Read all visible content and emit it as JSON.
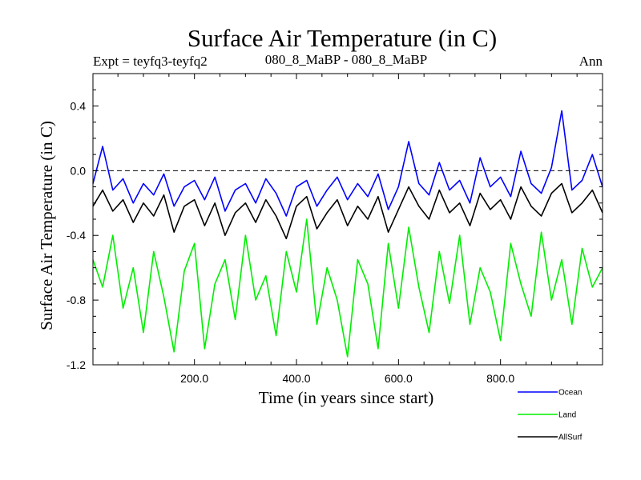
{
  "chart_data": {
    "type": "line",
    "title": "Surface Air Temperature (in C)",
    "subtitle_left": "Expt = teyfq3-teyfq2",
    "subtitle_center": "080_8_MaBP - 080_8_MaBP",
    "subtitle_right": "Ann",
    "xlabel": "Time (in years since start)",
    "ylabel": "Surface Air Temperature (in C)",
    "xlim": [
      1,
      1000
    ],
    "ylim": [
      -1.2,
      0.6
    ],
    "xticks": [
      200,
      400,
      600,
      800
    ],
    "xtick_labels": [
      "200.0",
      "400.0",
      "600.0",
      "800.0"
    ],
    "yticks": [
      -1.2,
      -0.8,
      -0.4,
      0.0,
      0.4
    ],
    "ytick_labels": [
      "-1.2",
      "-0.8",
      "-0.4",
      "0.0",
      "0.4"
    ],
    "reference_line": 0.0,
    "series": [
      {
        "name": "Ocean",
        "color": "#0000ff",
        "x": [
          1,
          20,
          40,
          60,
          80,
          100,
          120,
          140,
          160,
          180,
          200,
          220,
          240,
          260,
          280,
          300,
          320,
          340,
          360,
          380,
          400,
          420,
          440,
          460,
          480,
          500,
          520,
          540,
          560,
          580,
          600,
          620,
          640,
          660,
          680,
          700,
          720,
          740,
          760,
          780,
          800,
          820,
          840,
          860,
          880,
          900,
          920,
          940,
          960,
          980,
          1000
        ],
        "values": [
          -0.08,
          0.15,
          -0.12,
          -0.05,
          -0.2,
          -0.08,
          -0.15,
          -0.02,
          -0.22,
          -0.1,
          -0.06,
          -0.18,
          -0.04,
          -0.25,
          -0.12,
          -0.08,
          -0.2,
          -0.05,
          -0.14,
          -0.28,
          -0.1,
          -0.06,
          -0.22,
          -0.12,
          -0.04,
          -0.18,
          -0.08,
          -0.16,
          -0.02,
          -0.24,
          -0.1,
          0.18,
          -0.08,
          -0.15,
          0.05,
          -0.12,
          -0.06,
          -0.2,
          0.08,
          -0.1,
          -0.04,
          -0.16,
          0.12,
          -0.08,
          -0.14,
          0.02,
          0.37,
          -0.12,
          -0.06,
          0.1,
          -0.1
        ]
      },
      {
        "name": "Land",
        "color": "#00ee00",
        "x": [
          1,
          20,
          40,
          60,
          80,
          100,
          120,
          140,
          160,
          180,
          200,
          220,
          240,
          260,
          280,
          300,
          320,
          340,
          360,
          380,
          400,
          420,
          440,
          460,
          480,
          500,
          520,
          540,
          560,
          580,
          600,
          620,
          640,
          660,
          680,
          700,
          720,
          740,
          760,
          780,
          800,
          820,
          840,
          860,
          880,
          900,
          920,
          940,
          960,
          980,
          1000
        ],
        "values": [
          -0.55,
          -0.72,
          -0.4,
          -0.85,
          -0.6,
          -1.0,
          -0.5,
          -0.78,
          -1.12,
          -0.62,
          -0.45,
          -1.1,
          -0.7,
          -0.55,
          -0.92,
          -0.4,
          -0.8,
          -0.65,
          -1.02,
          -0.5,
          -0.75,
          -0.3,
          -0.95,
          -0.6,
          -0.8,
          -1.15,
          -0.55,
          -0.7,
          -1.1,
          -0.45,
          -0.85,
          -0.35,
          -0.72,
          -1.0,
          -0.5,
          -0.82,
          -0.4,
          -0.95,
          -0.6,
          -0.75,
          -1.05,
          -0.45,
          -0.7,
          -0.9,
          -0.38,
          -0.8,
          -0.55,
          -0.95,
          -0.48,
          -0.72,
          -0.6
        ]
      },
      {
        "name": "AllSurf",
        "color": "#000000",
        "x": [
          1,
          20,
          40,
          60,
          80,
          100,
          120,
          140,
          160,
          180,
          200,
          220,
          240,
          260,
          280,
          300,
          320,
          340,
          360,
          380,
          400,
          420,
          440,
          460,
          480,
          500,
          520,
          540,
          560,
          580,
          600,
          620,
          640,
          660,
          680,
          700,
          720,
          740,
          760,
          780,
          800,
          820,
          840,
          860,
          880,
          900,
          920,
          940,
          960,
          980,
          1000
        ],
        "values": [
          -0.22,
          -0.12,
          -0.25,
          -0.18,
          -0.32,
          -0.2,
          -0.28,
          -0.15,
          -0.38,
          -0.22,
          -0.18,
          -0.34,
          -0.2,
          -0.4,
          -0.26,
          -0.2,
          -0.32,
          -0.18,
          -0.28,
          -0.42,
          -0.22,
          -0.16,
          -0.36,
          -0.26,
          -0.18,
          -0.34,
          -0.22,
          -0.3,
          -0.16,
          -0.38,
          -0.24,
          -0.1,
          -0.22,
          -0.3,
          -0.12,
          -0.26,
          -0.2,
          -0.34,
          -0.14,
          -0.24,
          -0.18,
          -0.3,
          -0.1,
          -0.22,
          -0.28,
          -0.14,
          -0.08,
          -0.26,
          -0.2,
          -0.12,
          -0.26
        ]
      }
    ],
    "legend": {
      "position": "bottom-right",
      "entries": [
        "Ocean",
        "Land",
        "AllSurf"
      ]
    }
  }
}
